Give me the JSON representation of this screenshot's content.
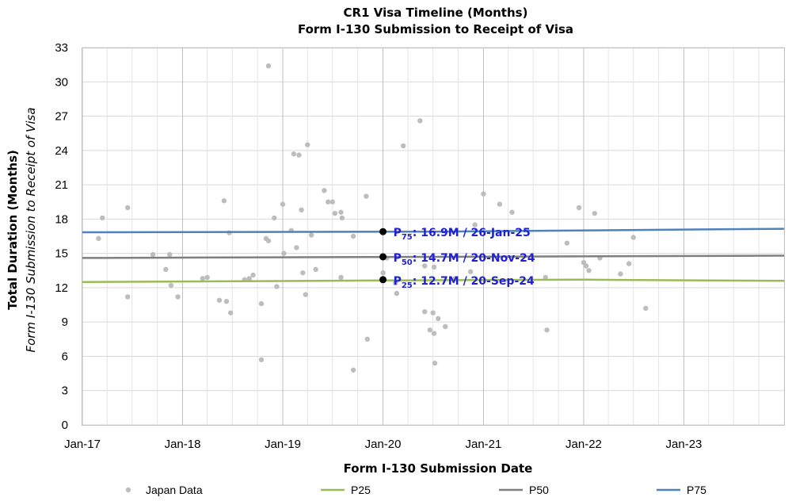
{
  "chart_data": {
    "type": "scatter",
    "title": "CR1 Visa Timeline (Months)",
    "subtitle": "Form I-130 Submission to Receipt of Visa",
    "xlabel": "Form I-130 Submission Date",
    "ylabel": "Total Duration (Months)",
    "ylabel_sub": "Form I-130 Submission to Receipt of Visa",
    "xlim": [
      "2017-01-01",
      "2024-01-01"
    ],
    "ylim": [
      0,
      33
    ],
    "x_ticks": [
      "Jan-17",
      "Jan-18",
      "Jan-19",
      "Jan-20",
      "Jan-21",
      "Jan-22",
      "Jan-23"
    ],
    "y_ticks": [
      0,
      3,
      6,
      9,
      12,
      15,
      18,
      21,
      24,
      27,
      30,
      33
    ],
    "grid": "vertical and horizontal",
    "legend_position": "bottom",
    "colors": {
      "Japan Data": "#bdbdbd",
      "P25": "#9bbb59",
      "P50": "#7f7f7f",
      "P75": "#4f81bd",
      "annotation": "#1f1fd6",
      "marker": "#000000"
    },
    "series": [
      {
        "name": "Japan Data",
        "type": "scatter",
        "points": [
          [
            "2017-03-01",
            16.3
          ],
          [
            "2017-03-15",
            18.1
          ],
          [
            "2017-06-15",
            19.0
          ],
          [
            "2017-06-15",
            11.2
          ],
          [
            "2017-09-15",
            14.9
          ],
          [
            "2017-11-01",
            13.6
          ],
          [
            "2017-11-15",
            14.9
          ],
          [
            "2017-11-20",
            12.2
          ],
          [
            "2017-12-15",
            11.2
          ],
          [
            "2018-03-15",
            12.8
          ],
          [
            "2018-04-01",
            12.9
          ],
          [
            "2018-05-15",
            10.9
          ],
          [
            "2018-06-01",
            19.6
          ],
          [
            "2018-06-10",
            10.8
          ],
          [
            "2018-06-20",
            16.8
          ],
          [
            "2018-06-25",
            9.8
          ],
          [
            "2018-08-15",
            12.7
          ],
          [
            "2018-09-01",
            12.8
          ],
          [
            "2018-09-15",
            13.1
          ],
          [
            "2018-10-15",
            5.7
          ],
          [
            "2018-10-15",
            10.6
          ],
          [
            "2018-11-01",
            16.3
          ],
          [
            "2018-11-10",
            16.1
          ],
          [
            "2018-11-10",
            31.4
          ],
          [
            "2018-12-01",
            18.1
          ],
          [
            "2018-12-10",
            12.1
          ],
          [
            "2019-01-01",
            19.3
          ],
          [
            "2019-01-05",
            15.0
          ],
          [
            "2019-02-01",
            17.0
          ],
          [
            "2019-02-10",
            23.7
          ],
          [
            "2019-02-20",
            15.5
          ],
          [
            "2019-03-01",
            23.6
          ],
          [
            "2019-03-10",
            18.8
          ],
          [
            "2019-03-15",
            13.3
          ],
          [
            "2019-03-25",
            11.4
          ],
          [
            "2019-04-01",
            24.5
          ],
          [
            "2019-04-15",
            16.6
          ],
          [
            "2019-05-01",
            13.6
          ],
          [
            "2019-06-01",
            20.5
          ],
          [
            "2019-06-15",
            19.5
          ],
          [
            "2019-07-01",
            19.5
          ],
          [
            "2019-07-10",
            18.5
          ],
          [
            "2019-08-01",
            12.9
          ],
          [
            "2019-08-01",
            18.6
          ],
          [
            "2019-08-05",
            18.1
          ],
          [
            "2019-09-15",
            16.5
          ],
          [
            "2019-09-15",
            4.8
          ],
          [
            "2019-11-01",
            20.0
          ],
          [
            "2019-11-05",
            7.5
          ],
          [
            "2020-01-01",
            13.3
          ],
          [
            "2020-01-15",
            14.6
          ],
          [
            "2020-02-15",
            12.4
          ],
          [
            "2020-02-20",
            11.5
          ],
          [
            "2020-03-15",
            24.4
          ],
          [
            "2020-05-15",
            26.6
          ],
          [
            "2020-06-01",
            13.9
          ],
          [
            "2020-06-01",
            9.9
          ],
          [
            "2020-06-20",
            8.3
          ],
          [
            "2020-07-01",
            9.8
          ],
          [
            "2020-07-05",
            13.8
          ],
          [
            "2020-07-05",
            8.0
          ],
          [
            "2020-07-08",
            5.4
          ],
          [
            "2020-07-20",
            9.3
          ],
          [
            "2020-08-15",
            8.6
          ],
          [
            "2020-09-20",
            12.8
          ],
          [
            "2020-11-15",
            13.4
          ],
          [
            "2020-12-01",
            17.5
          ],
          [
            "2021-01-01",
            20.2
          ],
          [
            "2021-03-01",
            19.3
          ],
          [
            "2021-04-15",
            18.6
          ],
          [
            "2021-08-15",
            12.9
          ],
          [
            "2021-08-20",
            8.3
          ],
          [
            "2021-11-01",
            15.9
          ],
          [
            "2021-12-15",
            19.0
          ],
          [
            "2022-01-01",
            14.2
          ],
          [
            "2022-01-10",
            13.9
          ],
          [
            "2022-01-20",
            13.5
          ],
          [
            "2022-02-10",
            18.5
          ],
          [
            "2022-03-01",
            14.6
          ],
          [
            "2022-05-15",
            13.2
          ],
          [
            "2022-06-15",
            14.1
          ],
          [
            "2022-07-01",
            16.4
          ],
          [
            "2022-08-15",
            10.2
          ]
        ]
      },
      {
        "name": "P25",
        "type": "line",
        "points": [
          [
            "2017-01-01",
            12.5
          ],
          [
            "2020-07-01",
            12.65
          ],
          [
            "2022-01-01",
            12.7
          ],
          [
            "2024-01-01",
            12.6
          ]
        ]
      },
      {
        "name": "P50",
        "type": "line",
        "points": [
          [
            "2017-01-01",
            14.6
          ],
          [
            "2020-07-01",
            14.7
          ],
          [
            "2024-01-01",
            14.8
          ]
        ]
      },
      {
        "name": "P75",
        "type": "line",
        "points": [
          [
            "2017-01-01",
            16.85
          ],
          [
            "2020-07-01",
            16.9
          ],
          [
            "2024-01-01",
            17.15
          ]
        ]
      }
    ],
    "annotations": [
      {
        "series": "P75",
        "x": "2020-01-01",
        "y": 16.9,
        "prefix": "P",
        "sub": "75",
        "text": ": 16.9M / 26-Jan-25"
      },
      {
        "series": "P50",
        "x": "2020-01-01",
        "y": 14.7,
        "prefix": "P",
        "sub": "50",
        "text": ": 14.7M / 20-Nov-24"
      },
      {
        "series": "P25",
        "x": "2020-01-01",
        "y": 12.7,
        "prefix": "P",
        "sub": "25",
        "text": ": 12.7M / 20-Sep-24"
      }
    ],
    "legend": [
      "Japan Data",
      "P25",
      "P50",
      "P75"
    ]
  }
}
